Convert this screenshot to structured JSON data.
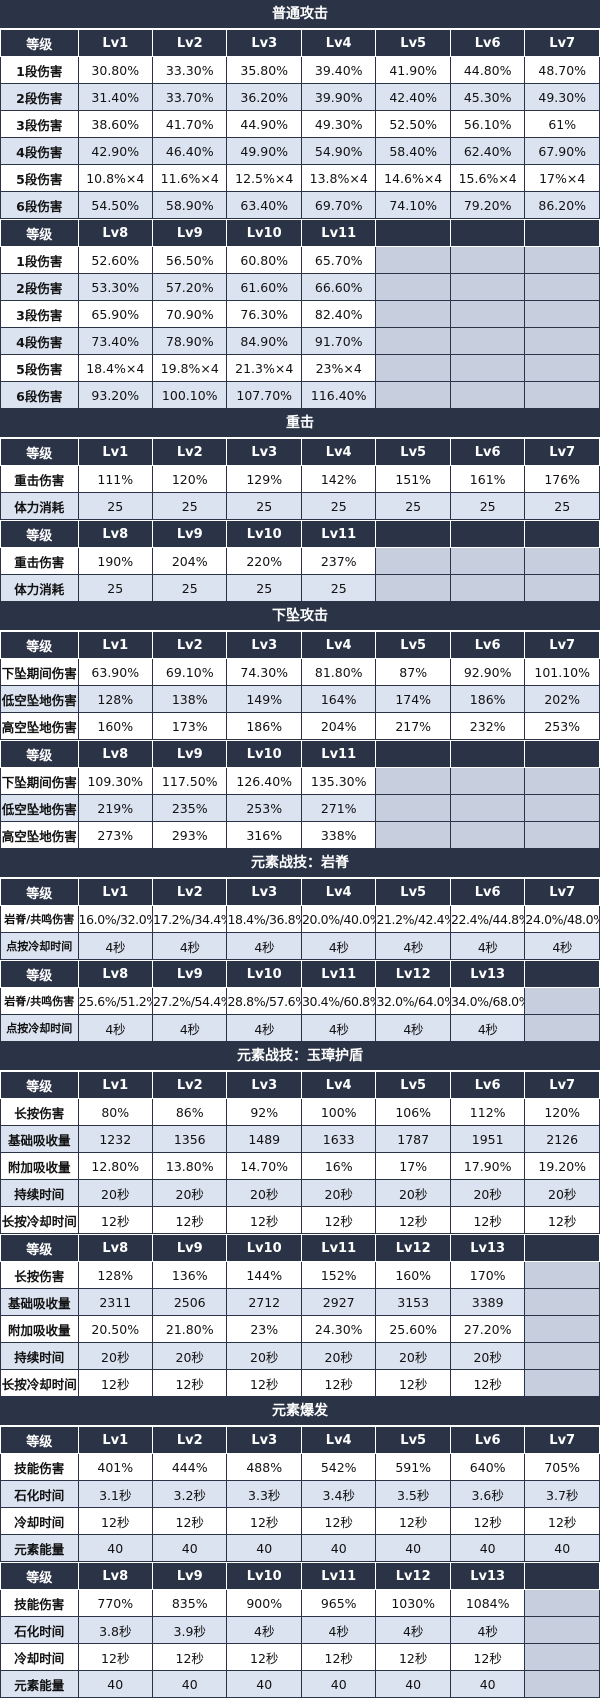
{
  "sections": [
    {
      "title": "普通攻击",
      "blocks": [
        {
          "header": [
            "等级",
            "Lv1",
            "Lv2",
            "Lv3",
            "Lv4",
            "Lv5",
            "Lv6",
            "Lv7"
          ],
          "rows": [
            [
              "1段伤害",
              "30.80%",
              "33.30%",
              "35.80%",
              "39.40%",
              "41.90%",
              "44.80%",
              "48.70%"
            ],
            [
              "2段伤害",
              "31.40%",
              "33.70%",
              "36.20%",
              "39.90%",
              "42.40%",
              "45.30%",
              "49.30%"
            ],
            [
              "3段伤害",
              "38.60%",
              "41.70%",
              "44.90%",
              "49.30%",
              "52.50%",
              "56.10%",
              "61%"
            ],
            [
              "4段伤害",
              "42.90%",
              "46.40%",
              "49.90%",
              "54.90%",
              "58.40%",
              "62.40%",
              "67.90%"
            ],
            [
              "5段伤害",
              "10.8%×4",
              "11.6%×4",
              "12.5%×4",
              "13.8%×4",
              "14.6%×4",
              "15.6%×4",
              "17%×4"
            ],
            [
              "6段伤害",
              "54.50%",
              "58.90%",
              "63.40%",
              "69.70%",
              "74.10%",
              "79.20%",
              "86.20%"
            ]
          ]
        },
        {
          "header": [
            "等级",
            "Lv8",
            "Lv9",
            "Lv10",
            "Lv11",
            "",
            "",
            ""
          ],
          "rows": [
            [
              "1段伤害",
              "52.60%",
              "56.50%",
              "60.80%",
              "65.70%",
              "",
              "",
              ""
            ],
            [
              "2段伤害",
              "53.30%",
              "57.20%",
              "61.60%",
              "66.60%",
              "",
              "",
              ""
            ],
            [
              "3段伤害",
              "65.90%",
              "70.90%",
              "76.30%",
              "82.40%",
              "",
              "",
              ""
            ],
            [
              "4段伤害",
              "73.40%",
              "78.90%",
              "84.90%",
              "91.70%",
              "",
              "",
              ""
            ],
            [
              "5段伤害",
              "18.4%×4",
              "19.8%×4",
              "21.3%×4",
              "23%×4",
              "",
              "",
              ""
            ],
            [
              "6段伤害",
              "93.20%",
              "100.10%",
              "107.70%",
              "116.40%",
              "",
              "",
              ""
            ]
          ]
        }
      ]
    },
    {
      "title": "重击",
      "blocks": [
        {
          "header": [
            "等级",
            "Lv1",
            "Lv2",
            "Lv3",
            "Lv4",
            "Lv5",
            "Lv6",
            "Lv7"
          ],
          "rows": [
            [
              "重击伤害",
              "111%",
              "120%",
              "129%",
              "142%",
              "151%",
              "161%",
              "176%"
            ],
            [
              "体力消耗",
              "25",
              "25",
              "25",
              "25",
              "25",
              "25",
              "25"
            ]
          ]
        },
        {
          "header": [
            "等级",
            "Lv8",
            "Lv9",
            "Lv10",
            "Lv11",
            "",
            "",
            ""
          ],
          "rows": [
            [
              "重击伤害",
              "190%",
              "204%",
              "220%",
              "237%",
              "",
              "",
              ""
            ],
            [
              "体力消耗",
              "25",
              "25",
              "25",
              "25",
              "",
              "",
              ""
            ]
          ]
        }
      ]
    },
    {
      "title": "下坠攻击",
      "blocks": [
        {
          "header": [
            "等级",
            "Lv1",
            "Lv2",
            "Lv3",
            "Lv4",
            "Lv5",
            "Lv6",
            "Lv7"
          ],
          "rows": [
            [
              "下坠期间伤害",
              "63.90%",
              "69.10%",
              "74.30%",
              "81.80%",
              "87%",
              "92.90%",
              "101.10%"
            ],
            [
              "低空坠地伤害",
              "128%",
              "138%",
              "149%",
              "164%",
              "174%",
              "186%",
              "202%"
            ],
            [
              "高空坠地伤害",
              "160%",
              "173%",
              "186%",
              "204%",
              "217%",
              "232%",
              "253%"
            ]
          ]
        },
        {
          "header": [
            "等级",
            "Lv8",
            "Lv9",
            "Lv10",
            "Lv11",
            "",
            "",
            ""
          ],
          "rows": [
            [
              "下坠期间伤害",
              "109.30%",
              "117.50%",
              "126.40%",
              "135.30%",
              "",
              "",
              ""
            ],
            [
              "低空坠地伤害",
              "219%",
              "235%",
              "253%",
              "271%",
              "",
              "",
              ""
            ],
            [
              "高空坠地伤害",
              "273%",
              "293%",
              "316%",
              "338%",
              "",
              "",
              ""
            ]
          ]
        }
      ]
    },
    {
      "title": "元素战技：岩脊",
      "blocks": [
        {
          "header": [
            "等级",
            "Lv1",
            "Lv2",
            "Lv3",
            "Lv4",
            "Lv5",
            "Lv6",
            "Lv7"
          ],
          "small": true,
          "rows": [
            [
              "岩脊/共鸣伤害",
              "16.0%/32.0%",
              "17.2%/34.4%",
              "18.4%/36.8%",
              "20.0%/40.0%",
              "21.2%/42.4%",
              "22.4%/44.8%",
              "24.0%/48.0%"
            ],
            [
              "点按冷却时间",
              "4秒",
              "4秒",
              "4秒",
              "4秒",
              "4秒",
              "4秒",
              "4秒"
            ]
          ]
        },
        {
          "header": [
            "等级",
            "Lv8",
            "Lv9",
            "Lv10",
            "Lv11",
            "Lv12",
            "Lv13",
            ""
          ],
          "small": true,
          "rows": [
            [
              "岩脊/共鸣伤害",
              "25.6%/51.2%",
              "27.2%/54.4%",
              "28.8%/57.6%",
              "30.4%/60.8%",
              "32.0%/64.0%",
              "34.0%/68.0%",
              ""
            ],
            [
              "点按冷却时间",
              "4秒",
              "4秒",
              "4秒",
              "4秒",
              "4秒",
              "4秒",
              ""
            ]
          ]
        }
      ]
    },
    {
      "title": "元素战技：玉璋护盾",
      "blocks": [
        {
          "header": [
            "等级",
            "Lv1",
            "Lv2",
            "Lv3",
            "Lv4",
            "Lv5",
            "Lv6",
            "Lv7"
          ],
          "rows": [
            [
              "长按伤害",
              "80%",
              "86%",
              "92%",
              "100%",
              "106%",
              "112%",
              "120%"
            ],
            [
              "基础吸收量",
              "1232",
              "1356",
              "1489",
              "1633",
              "1787",
              "1951",
              "2126"
            ],
            [
              "附加吸收量",
              "12.80%",
              "13.80%",
              "14.70%",
              "16%",
              "17%",
              "17.90%",
              "19.20%"
            ],
            [
              "持续时间",
              "20秒",
              "20秒",
              "20秒",
              "20秒",
              "20秒",
              "20秒",
              "20秒"
            ],
            [
              "长按冷却时间",
              "12秒",
              "12秒",
              "12秒",
              "12秒",
              "12秒",
              "12秒",
              "12秒"
            ]
          ]
        },
        {
          "header": [
            "等级",
            "Lv8",
            "Lv9",
            "Lv10",
            "Lv11",
            "Lv12",
            "Lv13",
            ""
          ],
          "rows": [
            [
              "长按伤害",
              "128%",
              "136%",
              "144%",
              "152%",
              "160%",
              "170%",
              ""
            ],
            [
              "基础吸收量",
              "2311",
              "2506",
              "2712",
              "2927",
              "3153",
              "3389",
              ""
            ],
            [
              "附加吸收量",
              "20.50%",
              "21.80%",
              "23%",
              "24.30%",
              "25.60%",
              "27.20%",
              ""
            ],
            [
              "持续时间",
              "20秒",
              "20秒",
              "20秒",
              "20秒",
              "20秒",
              "20秒",
              ""
            ],
            [
              "长按冷却时间",
              "12秒",
              "12秒",
              "12秒",
              "12秒",
              "12秒",
              "12秒",
              ""
            ]
          ]
        }
      ]
    },
    {
      "title": "元素爆发",
      "blocks": [
        {
          "header": [
            "等级",
            "Lv1",
            "Lv2",
            "Lv3",
            "Lv4",
            "Lv5",
            "Lv6",
            "Lv7"
          ],
          "rows": [
            [
              "技能伤害",
              "401%",
              "444%",
              "488%",
              "542%",
              "591%",
              "640%",
              "705%"
            ],
            [
              "石化时间",
              "3.1秒",
              "3.2秒",
              "3.3秒",
              "3.4秒",
              "3.5秒",
              "3.6秒",
              "3.7秒"
            ],
            [
              "冷却时间",
              "12秒",
              "12秒",
              "12秒",
              "12秒",
              "12秒",
              "12秒",
              "12秒"
            ],
            [
              "元素能量",
              "40",
              "40",
              "40",
              "40",
              "40",
              "40",
              "40"
            ]
          ]
        },
        {
          "header": [
            "等级",
            "Lv8",
            "Lv9",
            "Lv10",
            "Lv11",
            "Lv12",
            "Lv13",
            ""
          ],
          "rows": [
            [
              "技能伤害",
              "770%",
              "835%",
              "900%",
              "965%",
              "1030%",
              "1084%",
              ""
            ],
            [
              "石化时间",
              "3.8秒",
              "3.9秒",
              "4秒",
              "4秒",
              "4秒",
              "4秒",
              ""
            ],
            [
              "冷却时间",
              "12秒",
              "12秒",
              "12秒",
              "12秒",
              "12秒",
              "12秒",
              ""
            ],
            [
              "元素能量",
              "40",
              "40",
              "40",
              "40",
              "40",
              "40",
              ""
            ]
          ]
        }
      ]
    }
  ]
}
